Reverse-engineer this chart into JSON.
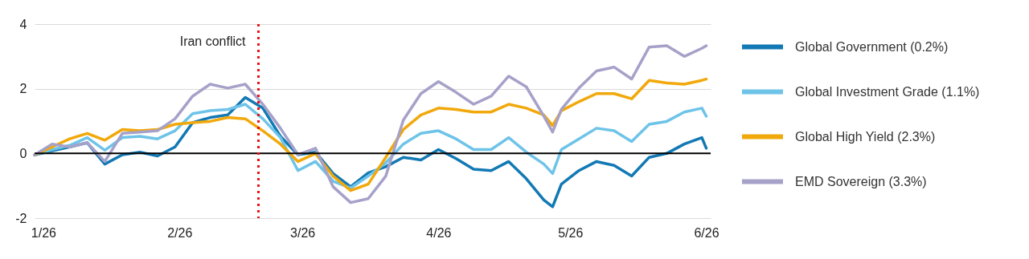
{
  "chart_data": {
    "type": "line",
    "x": [
      "2025-12-30",
      "2026-01-03",
      "2026-01-07",
      "2026-01-11",
      "2026-01-15",
      "2026-01-19",
      "2026-01-23",
      "2026-01-27",
      "2026-01-31",
      "2026-02-04",
      "2026-02-08",
      "2026-02-12",
      "2026-02-16",
      "2026-02-20",
      "2026-02-24",
      "2026-02-28",
      "2026-03-04",
      "2026-03-08",
      "2026-03-12",
      "2026-03-16",
      "2026-03-20",
      "2026-03-24",
      "2026-03-28",
      "2026-04-01",
      "2026-04-05",
      "2026-04-09",
      "2026-04-13",
      "2026-04-17",
      "2026-04-21",
      "2026-04-25",
      "2026-04-27",
      "2026-04-29",
      "2026-05-03",
      "2026-05-07",
      "2026-05-11",
      "2026-05-15",
      "2026-05-19",
      "2026-05-23",
      "2026-05-27",
      "2026-05-31",
      "2026-06-01"
    ],
    "series": [
      {
        "name": "Global Government (0.2%)",
        "color": "#1279b5",
        "values": [
          -0.05,
          0.08,
          0.2,
          0.33,
          -0.33,
          -0.04,
          0.04,
          -0.08,
          0.2,
          0.95,
          1.11,
          1.19,
          1.73,
          1.4,
          0.53,
          -0.04,
          0.04,
          -0.62,
          -1.03,
          -0.6,
          -0.41,
          -0.12,
          -0.2,
          0.12,
          -0.16,
          -0.49,
          -0.53,
          -0.25,
          -0.78,
          -1.44,
          -1.65,
          -0.95,
          -0.53,
          -0.25,
          -0.37,
          -0.7,
          -0.12,
          0,
          0.29,
          0.49,
          0.16
        ]
      },
      {
        "name": "Global Investment Grade (1.1%)",
        "color": "#6ec4e8",
        "values": [
          -0.05,
          0.12,
          0.25,
          0.49,
          0.1,
          0.49,
          0.53,
          0.45,
          0.7,
          1.23,
          1.32,
          1.36,
          1.52,
          1.07,
          0.49,
          -0.53,
          -0.25,
          -0.86,
          -1.07,
          -0.7,
          -0.29,
          0.29,
          0.62,
          0.7,
          0.45,
          0.12,
          0.12,
          0.49,
          0.04,
          -0.33,
          -0.62,
          0.12,
          0.45,
          0.78,
          0.7,
          0.37,
          0.9,
          0.99,
          1.28,
          1.4,
          1.15
        ]
      },
      {
        "name": "Global High Yield (2.3%)",
        "color": "#f0a80a",
        "values": [
          -0.05,
          0.2,
          0.45,
          0.62,
          0.41,
          0.74,
          0.7,
          0.74,
          0.9,
          0.95,
          0.99,
          1.11,
          1.07,
          0.7,
          0.29,
          -0.25,
          0,
          -0.7,
          -1.15,
          -0.95,
          -0.12,
          0.74,
          1.19,
          1.4,
          1.36,
          1.28,
          1.28,
          1.52,
          1.4,
          1.19,
          0.86,
          1.32,
          1.6,
          1.85,
          1.85,
          1.69,
          2.26,
          2.18,
          2.14,
          2.26,
          2.3
        ]
      },
      {
        "name": "EMD Sovereign (3.3%)",
        "color": "#a6a1c8",
        "values": [
          -0.05,
          0.29,
          0.2,
          0.33,
          -0.25,
          0.62,
          0.66,
          0.7,
          1.07,
          1.77,
          2.14,
          2.02,
          2.14,
          1.52,
          0.78,
          -0.04,
          0.16,
          -1.03,
          -1.52,
          -1.4,
          -0.7,
          1.03,
          1.85,
          2.22,
          1.89,
          1.52,
          1.77,
          2.39,
          2.06,
          1.15,
          0.66,
          1.36,
          2.02,
          2.55,
          2.67,
          2.3,
          3.29,
          3.33,
          3.0,
          3.25,
          3.33
        ]
      }
    ],
    "xlim": [
      "2025-12-30",
      "2026-06-02"
    ],
    "xticks": [
      {
        "value": "2026-01-01",
        "label": "1/26"
      },
      {
        "value": "2026-02-01",
        "label": "2/26"
      },
      {
        "value": "2026-03-01",
        "label": "3/26"
      },
      {
        "value": "2026-04-01",
        "label": "4/26"
      },
      {
        "value": "2026-05-01",
        "label": "5/26"
      },
      {
        "value": "2026-06-01",
        "label": "6/26"
      }
    ],
    "ylim": [
      -2,
      4
    ],
    "yticks": [
      -2,
      0,
      2,
      4
    ],
    "grid": "y",
    "legend": "right",
    "ref_lines": [
      {
        "axis": "y",
        "value": 0,
        "color": "#000000"
      },
      {
        "axis": "x",
        "value": "2026-02-19",
        "label": "Iran conflict",
        "color": "#e8141c",
        "line_style": "dotted"
      }
    ]
  }
}
